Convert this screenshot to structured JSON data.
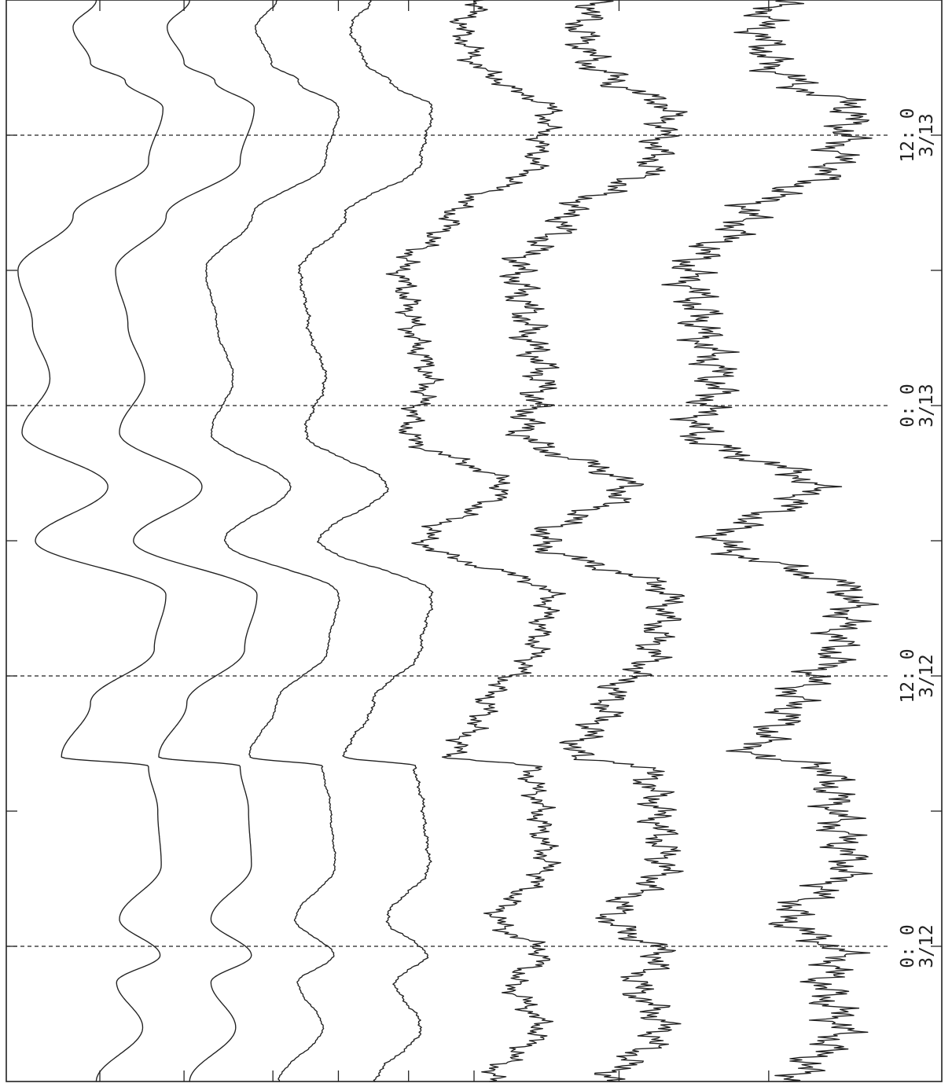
{
  "chart_data": {
    "type": "line",
    "orientation": "rotated-90",
    "x_axis": "time",
    "x_range": [
      "3/11 18:00",
      "3/13 18:00"
    ],
    "x_tick_labels": [
      {
        "time": "3/12 00:00",
        "line1": "0: 0",
        "line2": "3/12"
      },
      {
        "time": "3/12 12:00",
        "line1": "12: 0",
        "line2": "3/12"
      },
      {
        "time": "3/13 00:00",
        "line1": "0: 0",
        "line2": "3/13"
      },
      {
        "time": "3/13 12:00",
        "line1": "12: 0",
        "line2": "3/13"
      }
    ],
    "minor_ticks_every_hours": 6,
    "dashed_guides_at": [
      "3/12 00:00",
      "3/12 12:00",
      "3/13 00:00",
      "3/13 12:00"
    ],
    "grid": false,
    "legend": "none",
    "y_axis_labeled": false,
    "series": [
      {
        "baseline": 0.09,
        "amplitude": 0.062,
        "noise": 0.0,
        "x": [
          0,
          6,
          11,
          14,
          18,
          24,
          30,
          35,
          36,
          42,
          48,
          54,
          60,
          66,
          72,
          78,
          84,
          90,
          96,
          102,
          108,
          111,
          113,
          117,
          120
        ],
        "y": [
          0.1,
          0.9,
          0.45,
          1.2,
          0.5,
          1.22,
          1.16,
          1.0,
          -0.5,
          0.0,
          1.1,
          1.3,
          -0.95,
          0.3,
          -1.18,
          -0.7,
          -1.0,
          -1.25,
          -0.3,
          1.0,
          1.25,
          0.6,
          0.0,
          -0.3,
          0.1
        ]
      },
      {
        "baseline": 0.19,
        "amplitude": 0.06,
        "noise": 0.0,
        "x": [
          0,
          6,
          11,
          14,
          18,
          24,
          30,
          35,
          36,
          42,
          48,
          54,
          60,
          66,
          72,
          78,
          84,
          90,
          96,
          102,
          108,
          111,
          113,
          117,
          120
        ],
        "y": [
          0.1,
          0.92,
          0.48,
          1.2,
          0.48,
          1.2,
          1.15,
          1.0,
          -0.45,
          0.05,
          1.08,
          1.3,
          -0.9,
          0.32,
          -1.15,
          -0.7,
          -1.0,
          -1.22,
          -0.32,
          1.0,
          1.25,
          0.55,
          0.0,
          -0.3,
          0.1
        ]
      },
      {
        "baseline": 0.283,
        "amplitude": 0.058,
        "noise": 0.001,
        "x": [
          0,
          6,
          11,
          14,
          18,
          24,
          30,
          35,
          36,
          42,
          48,
          54,
          60,
          66,
          72,
          78,
          84,
          90,
          96,
          102,
          108,
          111,
          113,
          117,
          120
        ],
        "y": [
          0.15,
          0.95,
          0.5,
          1.15,
          0.45,
          1.18,
          1.1,
          0.95,
          -0.4,
          0.1,
          1.05,
          1.25,
          -0.85,
          0.35,
          -1.1,
          -0.7,
          -1.0,
          -1.2,
          -0.35,
          1.0,
          1.25,
          0.5,
          0.0,
          -0.28,
          0.1
        ]
      },
      {
        "baseline": 0.383,
        "amplitude": 0.06,
        "noise": 0.002,
        "x": [
          0,
          6,
          11,
          14,
          18,
          24,
          30,
          35,
          36,
          42,
          48,
          54,
          60,
          66,
          72,
          78,
          84,
          90,
          96,
          102,
          108,
          111,
          113,
          117,
          120
        ],
        "y": [
          0.2,
          1.0,
          0.55,
          1.1,
          0.4,
          1.15,
          1.05,
          0.9,
          -0.35,
          0.15,
          1.0,
          1.2,
          -0.8,
          0.4,
          -1.05,
          -0.7,
          -1.0,
          -1.15,
          -0.35,
          1.0,
          1.2,
          0.45,
          0.0,
          -0.25,
          0.1
        ]
      },
      {
        "baseline": 0.5,
        "amplitude": 0.07,
        "noise": 0.012,
        "x": [
          0,
          6,
          11,
          14,
          18,
          24,
          30,
          35,
          36,
          42,
          48,
          54,
          60,
          66,
          72,
          78,
          84,
          90,
          96,
          102,
          108,
          111,
          113,
          117,
          120
        ],
        "y": [
          0.25,
          1.0,
          0.6,
          1.05,
          0.35,
          1.1,
          1.0,
          0.85,
          -0.3,
          0.2,
          0.95,
          1.15,
          -0.75,
          0.45,
          -1.0,
          -0.7,
          -0.95,
          -1.1,
          -0.35,
          0.95,
          1.15,
          0.4,
          0.0,
          -0.2,
          0.1
        ]
      },
      {
        "baseline": 0.625,
        "amplitude": 0.075,
        "noise": 0.018,
        "x": [
          0,
          6,
          11,
          14,
          18,
          24,
          30,
          35,
          36,
          42,
          48,
          54,
          60,
          66,
          72,
          78,
          84,
          90,
          96,
          102,
          108,
          111,
          113,
          117,
          120
        ],
        "y": [
          0.3,
          1.0,
          0.65,
          1.0,
          0.3,
          1.05,
          0.95,
          0.8,
          -0.25,
          0.25,
          0.9,
          1.1,
          -0.7,
          0.5,
          -0.95,
          -0.7,
          -0.9,
          -1.05,
          -0.35,
          0.9,
          1.1,
          0.35,
          0.0,
          -0.15,
          0.1
        ]
      },
      {
        "baseline": 0.815,
        "amplitude": 0.085,
        "noise": 0.022,
        "x": [
          0,
          6,
          11,
          14,
          18,
          24,
          30,
          35,
          36,
          42,
          48,
          54,
          60,
          66,
          72,
          78,
          84,
          90,
          96,
          102,
          108,
          111,
          113,
          117,
          120
        ],
        "y": [
          0.35,
          0.9,
          0.7,
          0.9,
          0.25,
          1.0,
          0.85,
          0.75,
          -0.2,
          0.3,
          0.85,
          1.05,
          -0.6,
          0.55,
          -0.9,
          -0.65,
          -0.85,
          -1.0,
          -0.3,
          0.85,
          1.05,
          0.3,
          0.0,
          -0.1,
          0.1
        ]
      }
    ]
  }
}
